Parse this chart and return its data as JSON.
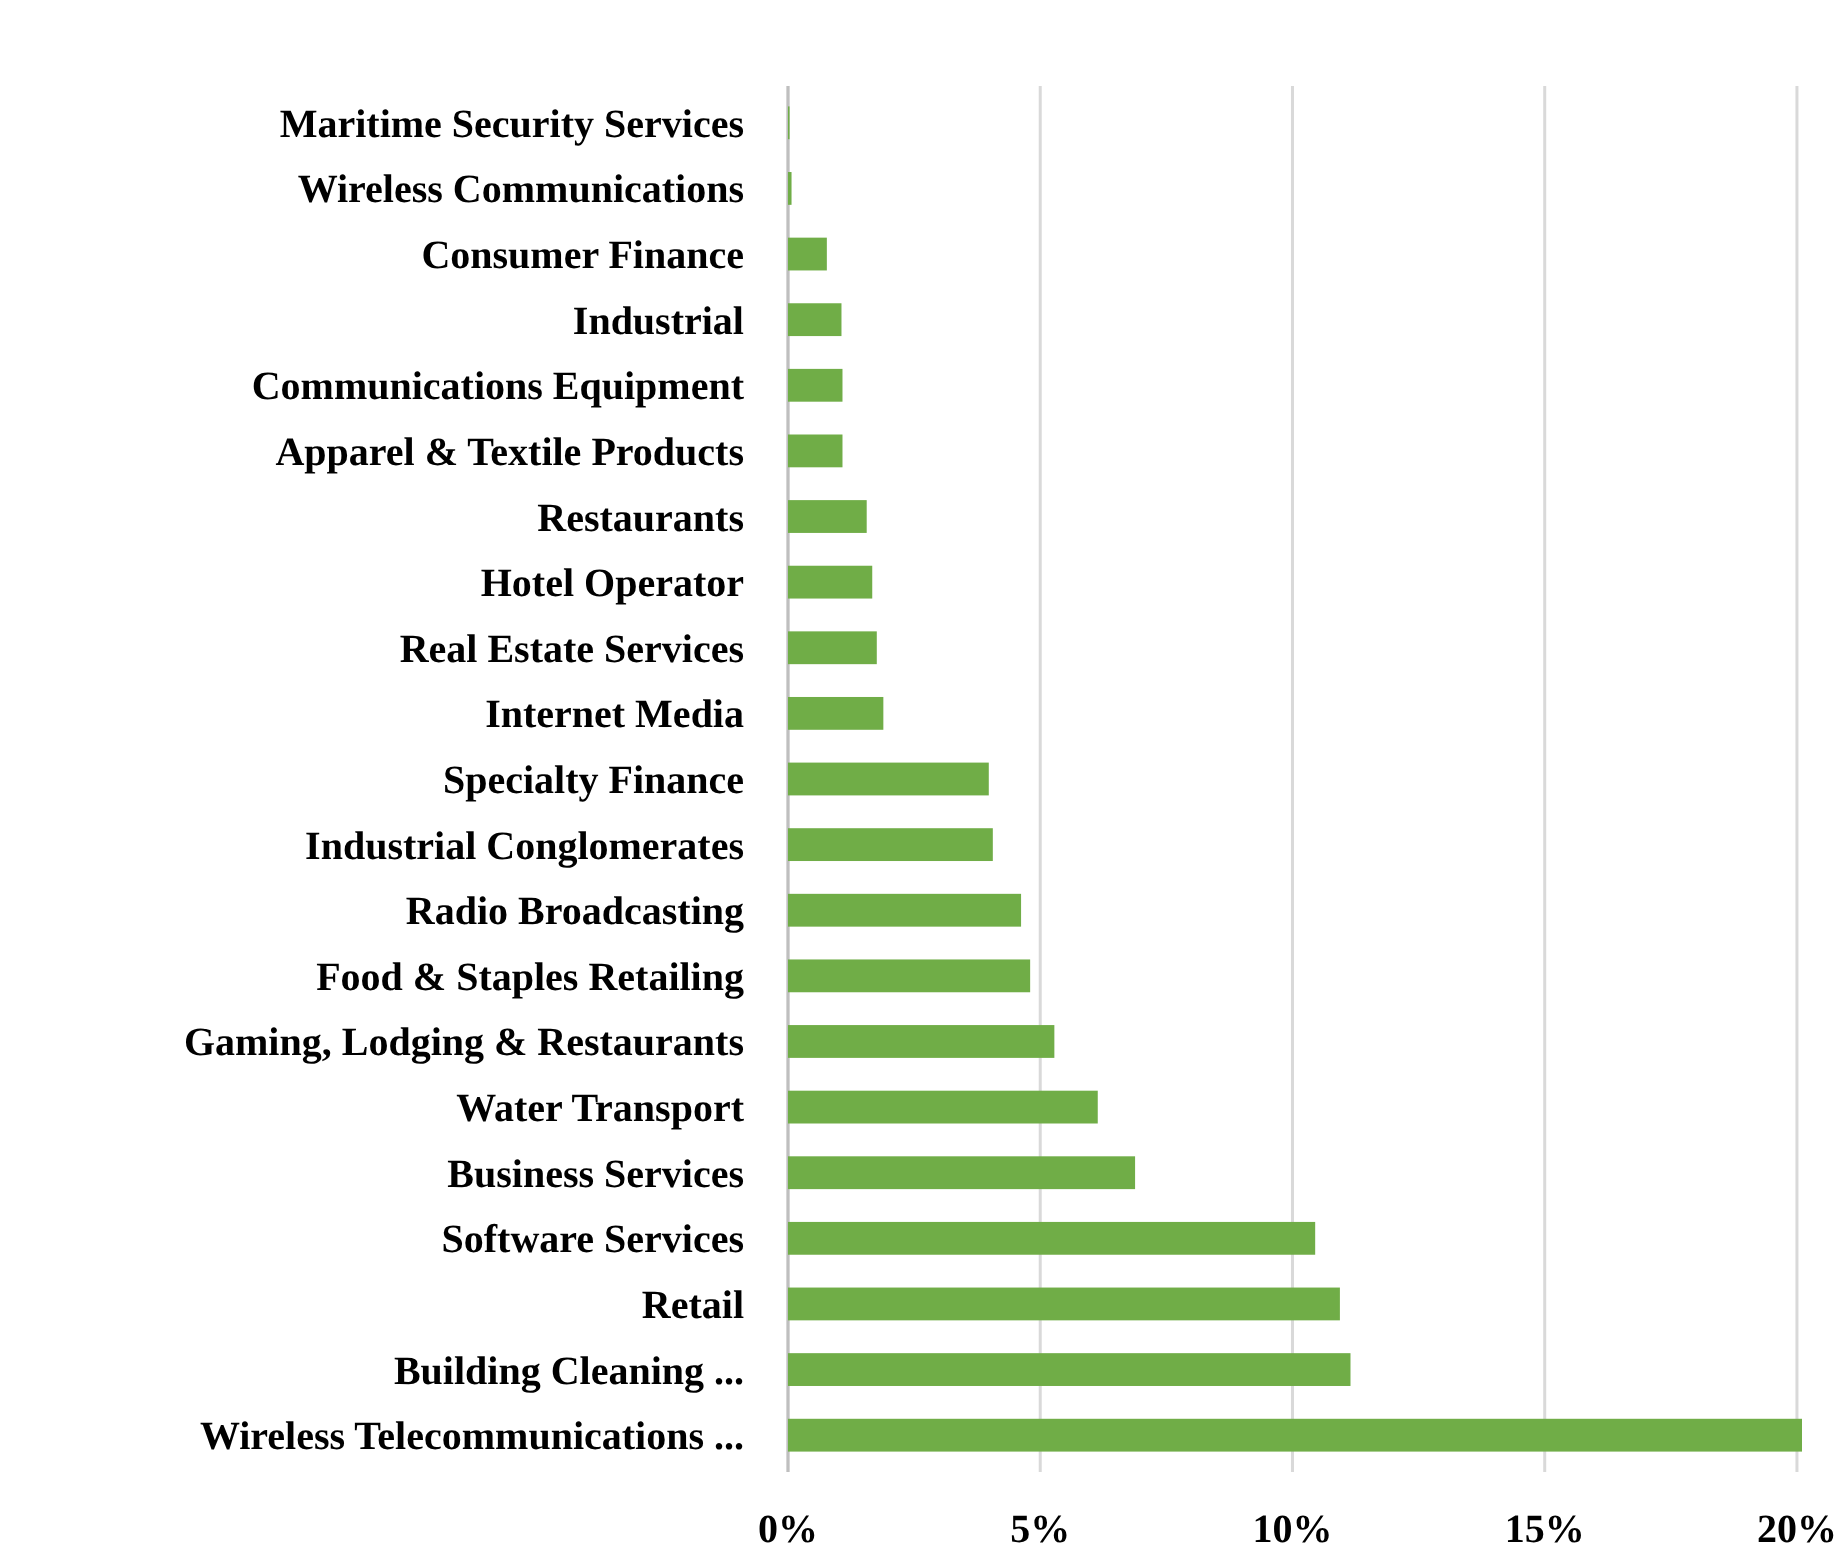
{
  "chart_data": {
    "type": "bar",
    "orientation": "horizontal",
    "categories": [
      "Maritime Security Services",
      "Wireless Communications",
      "Consumer Finance",
      "Industrial",
      "Communications Equipment",
      "Apparel & Textile Products",
      "Restaurants",
      "Hotel Operator",
      "Real Estate Services",
      "Internet Media",
      "Specialty Finance",
      "Industrial Conglomerates",
      "Radio Broadcasting",
      "Food & Staples Retailing",
      "Gaming, Lodging & Restaurants",
      "Water Transport",
      "Business Services",
      "Software Services",
      "Retail",
      "Building Cleaning ...",
      "Wireless Telecommunications ..."
    ],
    "values": [
      0.03,
      0.07,
      0.77,
      1.06,
      1.08,
      1.08,
      1.56,
      1.67,
      1.76,
      1.89,
      3.98,
      4.06,
      4.62,
      4.8,
      5.28,
      6.14,
      6.88,
      10.45,
      10.94,
      11.15,
      20.1
    ],
    "color": "#70ad47",
    "xlim": [
      0,
      20.1
    ],
    "xticks": [
      {
        "value": 0,
        "label": "0%"
      },
      {
        "value": 5,
        "label": "5%"
      },
      {
        "value": 10,
        "label": "10%"
      },
      {
        "value": 15,
        "label": "15%"
      },
      {
        "value": 20,
        "label": "20%"
      }
    ],
    "grid": "x"
  }
}
